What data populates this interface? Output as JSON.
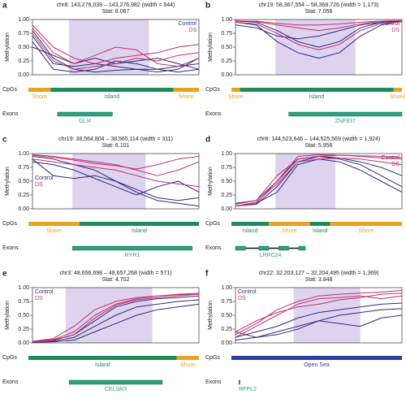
{
  "chart_data": [
    {
      "type": "line",
      "label": "a",
      "title": "chr8: 143,276,039 – 143,276,982 (width = 944)",
      "subtitle": "Stat: 8.067",
      "ylabel": "Methylation",
      "ylim": [
        0,
        1
      ],
      "yticks": [
        {
          "value": 0,
          "label": "0.00"
        },
        {
          "value": 0.25,
          "label": "0.25"
        },
        {
          "value": 0.5,
          "label": "0.50"
        },
        {
          "value": 0.75,
          "label": "0.75"
        },
        {
          "value": 1,
          "label": "1.00"
        }
      ],
      "legend": "top-right",
      "series": [
        {
          "name": "Control",
          "color": "#2e2a7a",
          "lines": [
            [
              0.8,
              0.3,
              0.1,
              0.05,
              0.08,
              0.1,
              0.05,
              0.1,
              0.3
            ],
            [
              0.7,
              0.2,
              0.15,
              0.2,
              0.15,
              0.1,
              0.1,
              0.15,
              0.2
            ],
            [
              0.6,
              0.1,
              0.05,
              0.1,
              0.25,
              0.2,
              0.1,
              0.05,
              0.1
            ],
            [
              0.5,
              0.35,
              0.2,
              0.3,
              0.2,
              0.25,
              0.3,
              0.2,
              0.1
            ]
          ]
        },
        {
          "name": "DS",
          "color": "#c2306e",
          "lines": [
            [
              0.9,
              0.5,
              0.3,
              0.2,
              0.3,
              0.35,
              0.4,
              0.5,
              0.55
            ],
            [
              0.85,
              0.4,
              0.2,
              0.35,
              0.5,
              0.45,
              0.2,
              0.15,
              0.3
            ],
            [
              0.75,
              0.25,
              0.1,
              0.15,
              0.2,
              0.3,
              0.25,
              0.35,
              0.4
            ]
          ]
        }
      ],
      "cpg_label": "CpGs",
      "cpg": [
        {
          "label": "Shore",
          "color": "#e9a21f"
        },
        {
          "label": "Island",
          "color": "#1e8c5a"
        },
        {
          "label": "Shore",
          "color": "#e9a21f"
        }
      ],
      "exon_label": "Exons",
      "gene": "GLI4"
    },
    {
      "type": "line",
      "label": "b",
      "title": "chr19: 58,367,554 – 58,368,726 (width = 1,173)",
      "subtitle": "Stat: 7.056",
      "ylabel": "Methylation",
      "ylim": [
        0,
        1
      ],
      "yticks": [
        {
          "value": 0,
          "label": "0.00"
        },
        {
          "value": 0.25,
          "label": "0.25"
        },
        {
          "value": 0.5,
          "label": "0.50"
        },
        {
          "value": 0.75,
          "label": "0.75"
        },
        {
          "value": 1,
          "label": "1.00"
        }
      ],
      "legend": "top-right",
      "series": [
        {
          "name": "Control",
          "color": "#2e2a7a",
          "lines": [
            [
              0.95,
              0.9,
              0.6,
              0.4,
              0.3,
              0.4,
              0.7,
              0.9,
              0.97
            ],
            [
              0.97,
              0.95,
              0.8,
              0.6,
              0.5,
              0.6,
              0.85,
              0.95,
              0.98
            ],
            [
              0.9,
              0.85,
              0.7,
              0.65,
              0.7,
              0.8,
              0.9,
              0.95,
              0.97
            ]
          ]
        },
        {
          "name": "DS",
          "color": "#c2306e",
          "lines": [
            [
              0.98,
              0.96,
              0.9,
              0.85,
              0.8,
              0.85,
              0.92,
              0.97,
              0.98
            ],
            [
              0.95,
              0.92,
              0.75,
              0.55,
              0.45,
              0.55,
              0.8,
              0.93,
              0.96
            ],
            [
              0.97,
              0.97,
              0.93,
              0.9,
              0.9,
              0.92,
              0.95,
              0.97,
              0.98
            ]
          ]
        }
      ],
      "cpg_label": "CpGs",
      "cpg": [
        {
          "label": "Shore",
          "color": "#e9a21f"
        },
        {
          "label": "Island",
          "color": "#1e8c5a"
        },
        {
          "label": "Shore",
          "color": "#e9a21f"
        }
      ],
      "exon_label": "Exons",
      "gene": "ZNF837"
    },
    {
      "type": "line",
      "label": "c",
      "title": "chr19: 38,564,804 – 38,565,114 (width = 311)",
      "subtitle": "Stat: 6.101",
      "ylabel": "Methylation",
      "ylim": [
        0,
        1
      ],
      "yticks": [
        {
          "value": 0,
          "label": "0.00"
        },
        {
          "value": 0.25,
          "label": "0.25"
        },
        {
          "value": 0.5,
          "label": "0.50"
        },
        {
          "value": 0.75,
          "label": "0.75"
        },
        {
          "value": 1,
          "label": "1.00"
        }
      ],
      "legend": "left",
      "series": [
        {
          "name": "Control",
          "color": "#2e2a7a",
          "lines": [
            [
              0.95,
              0.9,
              0.8,
              0.7,
              0.5,
              0.3,
              0.15,
              0.1,
              0.05
            ],
            [
              0.9,
              0.6,
              0.55,
              0.6,
              0.5,
              0.35,
              0.2,
              0.15,
              0.2
            ],
            [
              0.85,
              0.8,
              0.7,
              0.55,
              0.4,
              0.25,
              0.4,
              0.5,
              0.3
            ]
          ]
        },
        {
          "name": "DS",
          "color": "#c2306e",
          "lines": [
            [
              0.98,
              0.95,
              0.9,
              0.85,
              0.8,
              0.7,
              0.6,
              0.7,
              0.85
            ],
            [
              0.9,
              0.85,
              0.8,
              0.75,
              0.7,
              0.6,
              0.5,
              0.45,
              0.4
            ],
            [
              0.97,
              0.93,
              0.88,
              0.82,
              0.78,
              0.72,
              0.8,
              0.9,
              0.95
            ]
          ]
        }
      ],
      "cpg_label": "CpGs",
      "cpg": [
        {
          "label": "Shore",
          "color": "#e9a21f"
        },
        {
          "label": "Island",
          "color": "#1e8c5a"
        }
      ],
      "exon_label": "Exons",
      "gene": "RYR1"
    },
    {
      "type": "line",
      "label": "d",
      "title": "chr8: 144,523,646 – 144,525,569 (width = 1,924)",
      "subtitle": "Stat: 5.956",
      "ylabel": "Methylation",
      "ylim": [
        0,
        1
      ],
      "yticks": [
        {
          "value": 0,
          "label": "0.00"
        },
        {
          "value": 0.25,
          "label": "0.25"
        },
        {
          "value": 0.5,
          "label": "0.50"
        },
        {
          "value": 0.75,
          "label": "0.75"
        },
        {
          "value": 1,
          "label": "1.00"
        }
      ],
      "legend": "top-right",
      "series": [
        {
          "name": "Control",
          "color": "#2e2a7a",
          "lines": [
            [
              0.05,
              0.1,
              0.3,
              0.8,
              0.9,
              0.85,
              0.7,
              0.5,
              0.3
            ],
            [
              0.05,
              0.08,
              0.4,
              0.85,
              0.95,
              0.9,
              0.8,
              0.6,
              0.4
            ],
            [
              0.1,
              0.15,
              0.5,
              0.9,
              0.95,
              0.92,
              0.85,
              0.75,
              0.6
            ]
          ]
        },
        {
          "name": "DS",
          "color": "#c2306e",
          "lines": [
            [
              0.05,
              0.1,
              0.5,
              0.95,
              0.98,
              0.97,
              0.95,
              0.92,
              0.9
            ],
            [
              0.08,
              0.15,
              0.6,
              0.9,
              0.95,
              0.97,
              0.96,
              0.95,
              0.93
            ],
            [
              0.05,
              0.12,
              0.45,
              0.85,
              0.9,
              0.92,
              0.9,
              0.85,
              0.8
            ]
          ]
        }
      ],
      "cpg_label": "CpGs",
      "cpg": [
        {
          "label": "Island",
          "color": "#1e8c5a"
        },
        {
          "label": "Shore",
          "color": "#e9a21f"
        },
        {
          "label": "Island",
          "color": "#1e8c5a"
        },
        {
          "label": "Shore",
          "color": "#e9a21f"
        }
      ],
      "exon_label": "Exons",
      "gene": "LRRC24"
    },
    {
      "type": "line",
      "label": "e",
      "title": "chr3: 48,656,698 – 48,657,268 (width = 571)",
      "subtitle": "Stat: 4.702",
      "ylabel": "Methylation",
      "ylim": [
        0,
        1
      ],
      "yticks": [
        {
          "value": 0,
          "label": "0.00"
        },
        {
          "value": 0.25,
          "label": "0.25"
        },
        {
          "value": 0.5,
          "label": "0.50"
        },
        {
          "value": 0.75,
          "label": "0.75"
        },
        {
          "value": 1,
          "label": "1.00"
        }
      ],
      "legend": "top-left",
      "series": [
        {
          "name": "Control",
          "color": "#2e2a7a",
          "lines": [
            [
              0.02,
              0.05,
              0.15,
              0.4,
              0.65,
              0.75,
              0.8,
              0.82,
              0.85
            ],
            [
              0.02,
              0.03,
              0.1,
              0.3,
              0.5,
              0.65,
              0.7,
              0.75,
              0.78
            ],
            [
              0.01,
              0.02,
              0.05,
              0.2,
              0.35,
              0.5,
              0.6,
              0.65,
              0.7
            ]
          ]
        },
        {
          "name": "DS",
          "color": "#c2306e",
          "lines": [
            [
              0.02,
              0.06,
              0.2,
              0.5,
              0.7,
              0.8,
              0.85,
              0.88,
              0.9
            ],
            [
              0.03,
              0.08,
              0.3,
              0.6,
              0.75,
              0.82,
              0.85,
              0.87,
              0.88
            ],
            [
              0.02,
              0.04,
              0.15,
              0.45,
              0.68,
              0.78,
              0.82,
              0.85,
              0.88
            ]
          ]
        }
      ],
      "cpg_label": "CpGs",
      "cpg": [
        {
          "label": "Island",
          "color": "#1e8c5a"
        },
        {
          "label": "Shore",
          "color": "#e9a21f"
        }
      ],
      "exon_label": "Exons",
      "gene": "CELSR3"
    },
    {
      "type": "line",
      "label": "f",
      "title": "chr22: 32,203,127 – 32,204,495 (width = 1,369)",
      "subtitle": "Stat: 3.848",
      "ylabel": "Methylation",
      "ylim": [
        0,
        1
      ],
      "yticks": [
        {
          "value": 0,
          "label": "0.00"
        },
        {
          "value": 0.25,
          "label": "0.25"
        },
        {
          "value": 0.5,
          "label": "0.50"
        },
        {
          "value": 0.75,
          "label": "0.75"
        },
        {
          "value": 1,
          "label": "1.00"
        }
      ],
      "legend": "top-left",
      "series": [
        {
          "name": "Control",
          "color": "#2e2a7a",
          "lines": [
            [
              0.1,
              0.2,
              0.3,
              0.45,
              0.55,
              0.6,
              0.65,
              0.7,
              0.72
            ],
            [
              0.05,
              0.1,
              0.2,
              0.3,
              0.4,
              0.5,
              0.55,
              0.6,
              0.62
            ],
            [
              0.2,
              0.1,
              0.15,
              0.25,
              0.4,
              0.35,
              0.3,
              0.45,
              0.5
            ]
          ]
        },
        {
          "name": "DS",
          "color": "#c2306e",
          "lines": [
            [
              0.15,
              0.35,
              0.6,
              0.75,
              0.85,
              0.88,
              0.9,
              0.92,
              0.95
            ],
            [
              0.1,
              0.3,
              0.5,
              0.7,
              0.8,
              0.82,
              0.85,
              0.8,
              0.85
            ],
            [
              0.2,
              0.4,
              0.55,
              0.65,
              0.7,
              0.78,
              0.82,
              0.88,
              0.9
            ]
          ]
        }
      ],
      "cpg_label": "CpGs",
      "cpg": [
        {
          "label": "Open Sea",
          "color": "#2e3e9e"
        }
      ],
      "exon_label": "Exons",
      "gene": "RFPL2"
    }
  ]
}
